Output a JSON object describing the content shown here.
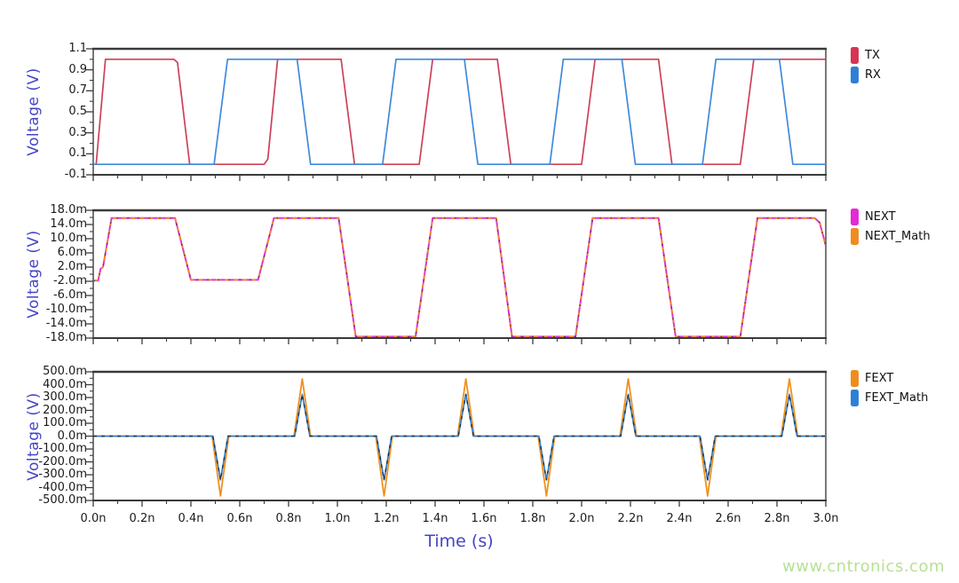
{
  "watermark": {
    "text": "www.cntronics.com",
    "color": "#b6e294"
  },
  "styles": {
    "background": "#ffffff",
    "frame": "#4c4c4c",
    "frame_heavy": "#3a3a3a",
    "tick": "#3c3c3c",
    "tick_label": "#1b1b1b",
    "axis_title": "#4545c6",
    "legend_label": "#111111"
  },
  "x_axis": {
    "title": "Time (s)",
    "unit": "n",
    "xlim": [
      0,
      3
    ],
    "major_ticks": [
      {
        "t": 0.0,
        "label": "0.0n"
      },
      {
        "t": 0.2,
        "label": "0.2n"
      },
      {
        "t": 0.4,
        "label": "0.4n"
      },
      {
        "t": 0.6,
        "label": "0.6n"
      },
      {
        "t": 0.8,
        "label": "0.8n"
      },
      {
        "t": 1.0,
        "label": "1.0n"
      },
      {
        "t": 1.2,
        "label": "1.2n"
      },
      {
        "t": 1.4,
        "label": "1.4n"
      },
      {
        "t": 1.6,
        "label": "1.6n"
      },
      {
        "t": 1.8,
        "label": "1.8n"
      },
      {
        "t": 2.0,
        "label": "2.0n"
      },
      {
        "t": 2.2,
        "label": "2.2n"
      },
      {
        "t": 2.4,
        "label": "2.4n"
      },
      {
        "t": 2.6,
        "label": "2.6n"
      },
      {
        "t": 2.8,
        "label": "2.8n"
      },
      {
        "t": 3.0,
        "label": "3.0n"
      }
    ],
    "minor_ticks": [
      0.1,
      0.3,
      0.5,
      0.7,
      0.9,
      1.1,
      1.3,
      1.5,
      1.7,
      1.9,
      2.1,
      2.3,
      2.5,
      2.7,
      2.9
    ]
  },
  "chart_data": [
    {
      "type": "line",
      "ylabel": "Voltage (V)",
      "xlabel": "",
      "ylim": [
        -0.1,
        1.1
      ],
      "yticks": [
        {
          "v": 1.1,
          "label": "1.1"
        },
        {
          "v": 0.9,
          "label": "0.9"
        },
        {
          "v": 0.7,
          "label": "0.7"
        },
        {
          "v": 0.5,
          "label": "0.5"
        },
        {
          "v": 0.3,
          "label": "0.3"
        },
        {
          "v": 0.1,
          "label": "0.1"
        },
        {
          "v": -0.1,
          "label": "-0.1"
        }
      ],
      "yminor": [
        1.0,
        0.8,
        0.6,
        0.4,
        0.2,
        0.0
      ],
      "legend": [
        {
          "label": "TX",
          "color": "#d63552"
        },
        {
          "label": "RX",
          "color": "#2e7fd6"
        }
      ],
      "series": [
        {
          "name": "TX",
          "strokes": [
            {
              "color": "#cc4257",
              "width": 1.7
            }
          ],
          "points": [
            [
              0.0,
              0
            ],
            [
              0.012,
              0
            ],
            [
              0.05,
              1.0
            ],
            [
              0.33,
              1.0
            ],
            [
              0.345,
              0.97
            ],
            [
              0.395,
              0
            ],
            [
              0.7,
              0
            ],
            [
              0.715,
              0.05
            ],
            [
              0.755,
              1.0
            ],
            [
              1.015,
              1.0
            ],
            [
              1.07,
              0
            ],
            [
              1.335,
              0
            ],
            [
              1.39,
              1.0
            ],
            [
              1.655,
              1.0
            ],
            [
              1.71,
              0
            ],
            [
              2.0,
              0
            ],
            [
              2.055,
              1.0
            ],
            [
              2.315,
              1.0
            ],
            [
              2.37,
              0
            ],
            [
              2.65,
              0
            ],
            [
              2.705,
              1.0
            ],
            [
              3.0,
              1.0
            ]
          ]
        },
        {
          "name": "RX",
          "strokes": [
            {
              "color": "#3f8adc",
              "width": 1.7
            }
          ],
          "points": [
            [
              0,
              0
            ],
            [
              0.495,
              0
            ],
            [
              0.55,
              1.0
            ],
            [
              0.835,
              1.0
            ],
            [
              0.89,
              0
            ],
            [
              1.185,
              0
            ],
            [
              1.24,
              1.0
            ],
            [
              1.52,
              1.0
            ],
            [
              1.575,
              0
            ],
            [
              1.87,
              0
            ],
            [
              1.925,
              1.0
            ],
            [
              2.165,
              1.0
            ],
            [
              2.22,
              0
            ],
            [
              2.495,
              0
            ],
            [
              2.55,
              1.0
            ],
            [
              2.81,
              1.0
            ],
            [
              2.865,
              0
            ],
            [
              3.0,
              0
            ]
          ]
        }
      ]
    },
    {
      "type": "line",
      "ylabel": "Voltage (V)",
      "xlabel": "",
      "ylim": [
        -18,
        18
      ],
      "yunit": "m",
      "yticks": [
        {
          "v": 18,
          "label": "18.0m"
        },
        {
          "v": 14,
          "label": "14.0m"
        },
        {
          "v": 10,
          "label": "10.0m"
        },
        {
          "v": 6,
          "label": "6.0m"
        },
        {
          "v": 2,
          "label": "2.0m"
        },
        {
          "v": -2,
          "label": "-2.0m"
        },
        {
          "v": -6,
          "label": "-6.0m"
        },
        {
          "v": -10,
          "label": "-10.0m"
        },
        {
          "v": -14,
          "label": "-14.0m"
        },
        {
          "v": -18,
          "label": "-18.0m"
        }
      ],
      "yminor": [
        16,
        12,
        8,
        4,
        0,
        -4,
        -8,
        -12,
        -16
      ],
      "legend": [
        {
          "label": "NEXT",
          "color": "#e32ad8"
        },
        {
          "label": "NEXT_Math",
          "color": "#ef8c1f"
        }
      ],
      "series": [
        {
          "name": "NEXT",
          "strokes": [
            {
              "color": "#e431d6",
              "width": 2
            }
          ],
          "points": [
            [
              0,
              -1.8
            ],
            [
              0.02,
              -1.8
            ],
            [
              0.03,
              1.5
            ],
            [
              0.04,
              2.0
            ],
            [
              0.075,
              15.8
            ],
            [
              0.335,
              15.8
            ],
            [
              0.4,
              -1.6
            ],
            [
              0.675,
              -1.6
            ],
            [
              0.74,
              15.8
            ],
            [
              1.005,
              15.8
            ],
            [
              1.075,
              -17.6
            ],
            [
              1.32,
              -17.6
            ],
            [
              1.39,
              15.8
            ],
            [
              1.65,
              15.8
            ],
            [
              1.715,
              -17.6
            ],
            [
              1.975,
              -17.6
            ],
            [
              2.045,
              15.8
            ],
            [
              2.315,
              15.8
            ],
            [
              2.385,
              -17.6
            ],
            [
              2.65,
              -17.6
            ],
            [
              2.72,
              15.8
            ],
            [
              2.955,
              15.8
            ],
            [
              2.975,
              14.5
            ],
            [
              3.0,
              8.0
            ]
          ]
        },
        {
          "name": "NEXT_Math",
          "points_ref": "NEXT",
          "strokes": [
            {
              "color": "#ef8c1f",
              "width": 1.8,
              "dash": "5 5"
            },
            {
              "color": "#3f3f3f",
              "width": 1.2,
              "dash": "2 10"
            }
          ]
        }
      ]
    },
    {
      "type": "line",
      "ylabel": "Voltage (V)",
      "xlabel": "Time (s)",
      "ylim": [
        -500,
        500
      ],
      "yunit": "m",
      "yticks": [
        {
          "v": 500,
          "label": "500.0m"
        },
        {
          "v": 400,
          "label": "400.0m"
        },
        {
          "v": 300,
          "label": "300.0m"
        },
        {
          "v": 200,
          "label": "200.0m"
        },
        {
          "v": 100,
          "label": "100.0m"
        },
        {
          "v": 0,
          "label": "0.0m"
        },
        {
          "v": -100,
          "label": "-100.0m"
        },
        {
          "v": -200,
          "label": "-200.0m"
        },
        {
          "v": -300,
          "label": "-300.0m"
        },
        {
          "v": -400,
          "label": "-400.0m"
        },
        {
          "v": -500,
          "label": "-500.0m"
        }
      ],
      "yminor": [
        450,
        350,
        250,
        150,
        50,
        -50,
        -150,
        -250,
        -350,
        -450
      ],
      "legend": [
        {
          "label": "FEXT",
          "color": "#ef8c1f"
        },
        {
          "label": "FEXT_Math",
          "color": "#2e7fd6"
        }
      ],
      "series": [
        {
          "name": "FEXT",
          "strokes": [
            {
              "color": "#f0911d",
              "width": 1.8
            }
          ],
          "points": [
            [
              0,
              0
            ],
            [
              0.487,
              0
            ],
            [
              0.521,
              -465
            ],
            [
              0.555,
              0
            ],
            [
              0.822,
              0
            ],
            [
              0.856,
              445
            ],
            [
              0.89,
              0
            ],
            [
              1.157,
              0
            ],
            [
              1.191,
              -465
            ],
            [
              1.225,
              0
            ],
            [
              1.492,
              0
            ],
            [
              1.526,
              445
            ],
            [
              1.56,
              0
            ],
            [
              1.822,
              0
            ],
            [
              1.856,
              -465
            ],
            [
              1.89,
              0
            ],
            [
              2.157,
              0
            ],
            [
              2.191,
              445
            ],
            [
              2.225,
              0
            ],
            [
              2.482,
              0
            ],
            [
              2.516,
              -465
            ],
            [
              2.55,
              0
            ],
            [
              2.817,
              0
            ],
            [
              2.851,
              445
            ],
            [
              2.885,
              0
            ],
            [
              3.0,
              0
            ]
          ]
        },
        {
          "name": "FEXT_Math",
          "strokes": [
            {
              "color": "#2f83d6",
              "width": 1.7
            },
            {
              "color": "#2f2f2f",
              "width": 1.4,
              "dash": "4 5"
            }
          ],
          "points": [
            [
              0,
              0
            ],
            [
              0.49,
              0
            ],
            [
              0.521,
              -340
            ],
            [
              0.552,
              0
            ],
            [
              0.825,
              0
            ],
            [
              0.856,
              325
            ],
            [
              0.887,
              0
            ],
            [
              1.16,
              0
            ],
            [
              1.191,
              -340
            ],
            [
              1.222,
              0
            ],
            [
              1.495,
              0
            ],
            [
              1.526,
              325
            ],
            [
              1.557,
              0
            ],
            [
              1.825,
              0
            ],
            [
              1.856,
              -340
            ],
            [
              1.887,
              0
            ],
            [
              2.16,
              0
            ],
            [
              2.191,
              325
            ],
            [
              2.222,
              0
            ],
            [
              2.485,
              0
            ],
            [
              2.516,
              -340
            ],
            [
              2.547,
              0
            ],
            [
              2.82,
              0
            ],
            [
              2.851,
              325
            ],
            [
              2.882,
              0
            ],
            [
              3.0,
              0
            ]
          ]
        }
      ]
    }
  ]
}
